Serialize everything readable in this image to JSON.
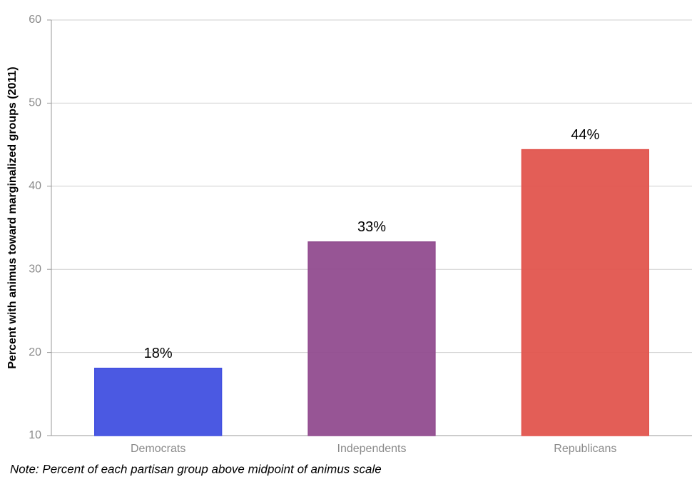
{
  "chart_data": {
    "type": "bar",
    "y_label": "Percent with animus toward marginalized groups (2011)",
    "note": "Note: Percent of each partisan group above midpoint of animus scale",
    "categories": [
      "Democrats",
      "Independents",
      "Republicans"
    ],
    "values": [
      18.1,
      33.3,
      44.4
    ],
    "value_labels": [
      "18%",
      "33%",
      "44%"
    ],
    "colors": [
      "#4150e0",
      "#914c8f",
      "#e2554e"
    ],
    "ylim": [
      10,
      60
    ],
    "yticks": [
      10,
      20,
      30,
      40,
      50,
      60
    ],
    "grid": true
  }
}
